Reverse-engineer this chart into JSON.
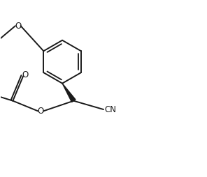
{
  "bg_color": "#ffffff",
  "line_color": "#1a1a1a",
  "line_width": 1.4,
  "figsize": [
    2.96,
    2.54
  ],
  "dpi": 100,
  "xlim": [
    -1.5,
    8.5
  ],
  "ylim": [
    -4.5,
    3.5
  ]
}
